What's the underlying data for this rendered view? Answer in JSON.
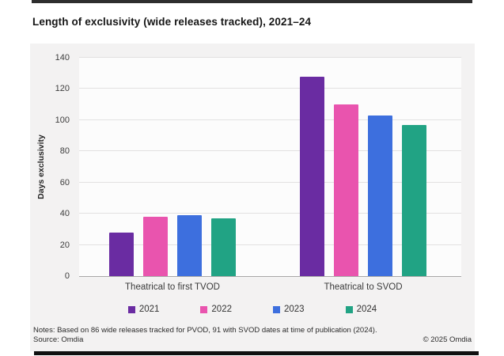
{
  "header": {
    "title": "Length of exclusivity (wide releases tracked), 2021–24"
  },
  "chart_data": {
    "type": "bar",
    "title": "Length of exclusivity (wide releases tracked), 2021–24",
    "categories": [
      "Theatrical to first TVOD",
      "Theatrical to SVOD"
    ],
    "series": [
      {
        "name": "2021",
        "color": "#6a2ca2",
        "values": [
          28,
          128
        ]
      },
      {
        "name": "2022",
        "color": "#e954ae",
        "values": [
          38,
          110
        ]
      },
      {
        "name": "2023",
        "color": "#3d6fde",
        "values": [
          39,
          103
        ]
      },
      {
        "name": "2024",
        "color": "#21a384",
        "values": [
          37,
          97
        ]
      }
    ],
    "xlabel": "",
    "ylabel": "Days exclusivity",
    "ylim": [
      0,
      140
    ],
    "ytick_step": 20,
    "grid": true,
    "legend_position": "bottom"
  },
  "footer": {
    "notes": "Notes: Based on 86 wide releases tracked for PVOD, 91 with SVOD dates at time of publication (2024).",
    "source": "Source: Omdia",
    "copyright": "© 2025 Omdia"
  }
}
